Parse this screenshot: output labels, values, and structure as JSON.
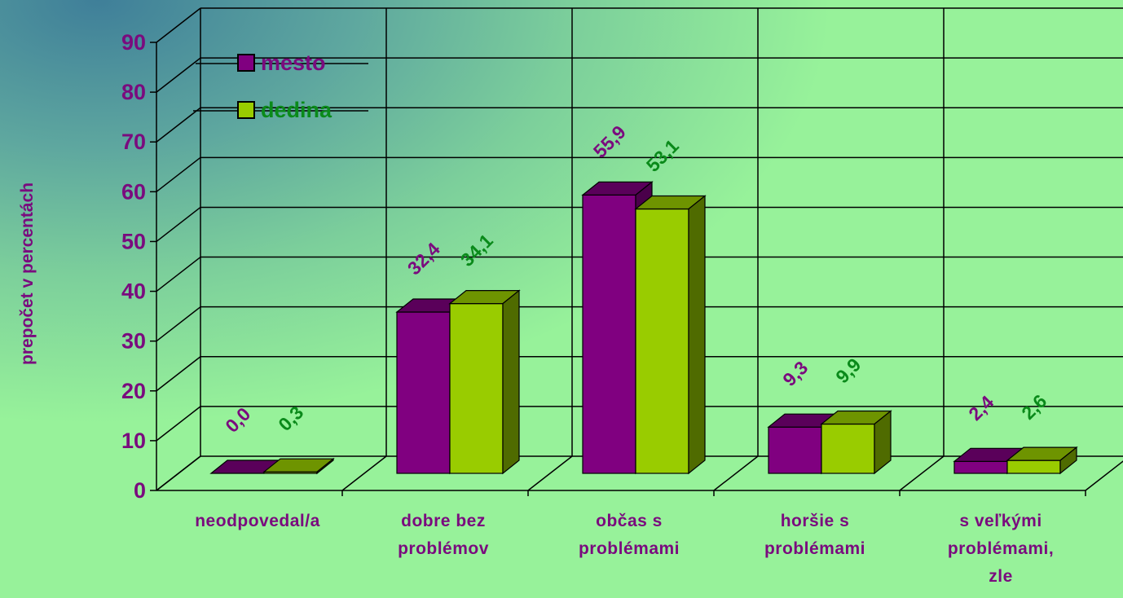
{
  "chart_data": {
    "type": "bar",
    "ylabel": "prepočet v percentách",
    "ylim": [
      0,
      90
    ],
    "yticks": [
      "0",
      "10",
      "20",
      "30",
      "40",
      "50",
      "60",
      "70",
      "80",
      "90"
    ],
    "grid": true,
    "legend_position": "top-left",
    "categories": [
      [
        "neodpovedal/a"
      ],
      [
        "dobre bez",
        "problémov"
      ],
      [
        "občas s",
        "problémami"
      ],
      [
        "horšie s",
        "problémami"
      ],
      [
        "s veľkými",
        "problémami,",
        "zle"
      ]
    ],
    "series": [
      {
        "name": "mesto",
        "values": [
          0.0,
          32.4,
          55.9,
          9.3,
          2.4
        ],
        "labels": [
          "0,0",
          "32,4",
          "55,9",
          "9,3",
          "2,4"
        ],
        "color": "#800080",
        "top_color": "#5a005a",
        "side_color": "#4a004a",
        "label_color": "#7a0b7e"
      },
      {
        "name": "dedina",
        "values": [
          0.3,
          34.1,
          53.1,
          9.9,
          2.6
        ],
        "labels": [
          "0,3",
          "34,1",
          "53,1",
          "9,9",
          "2,6"
        ],
        "color": "#99cc00",
        "top_color": "#6e9400",
        "side_color": "#4f6b00",
        "label_color": "#0a8a1a"
      }
    ]
  }
}
